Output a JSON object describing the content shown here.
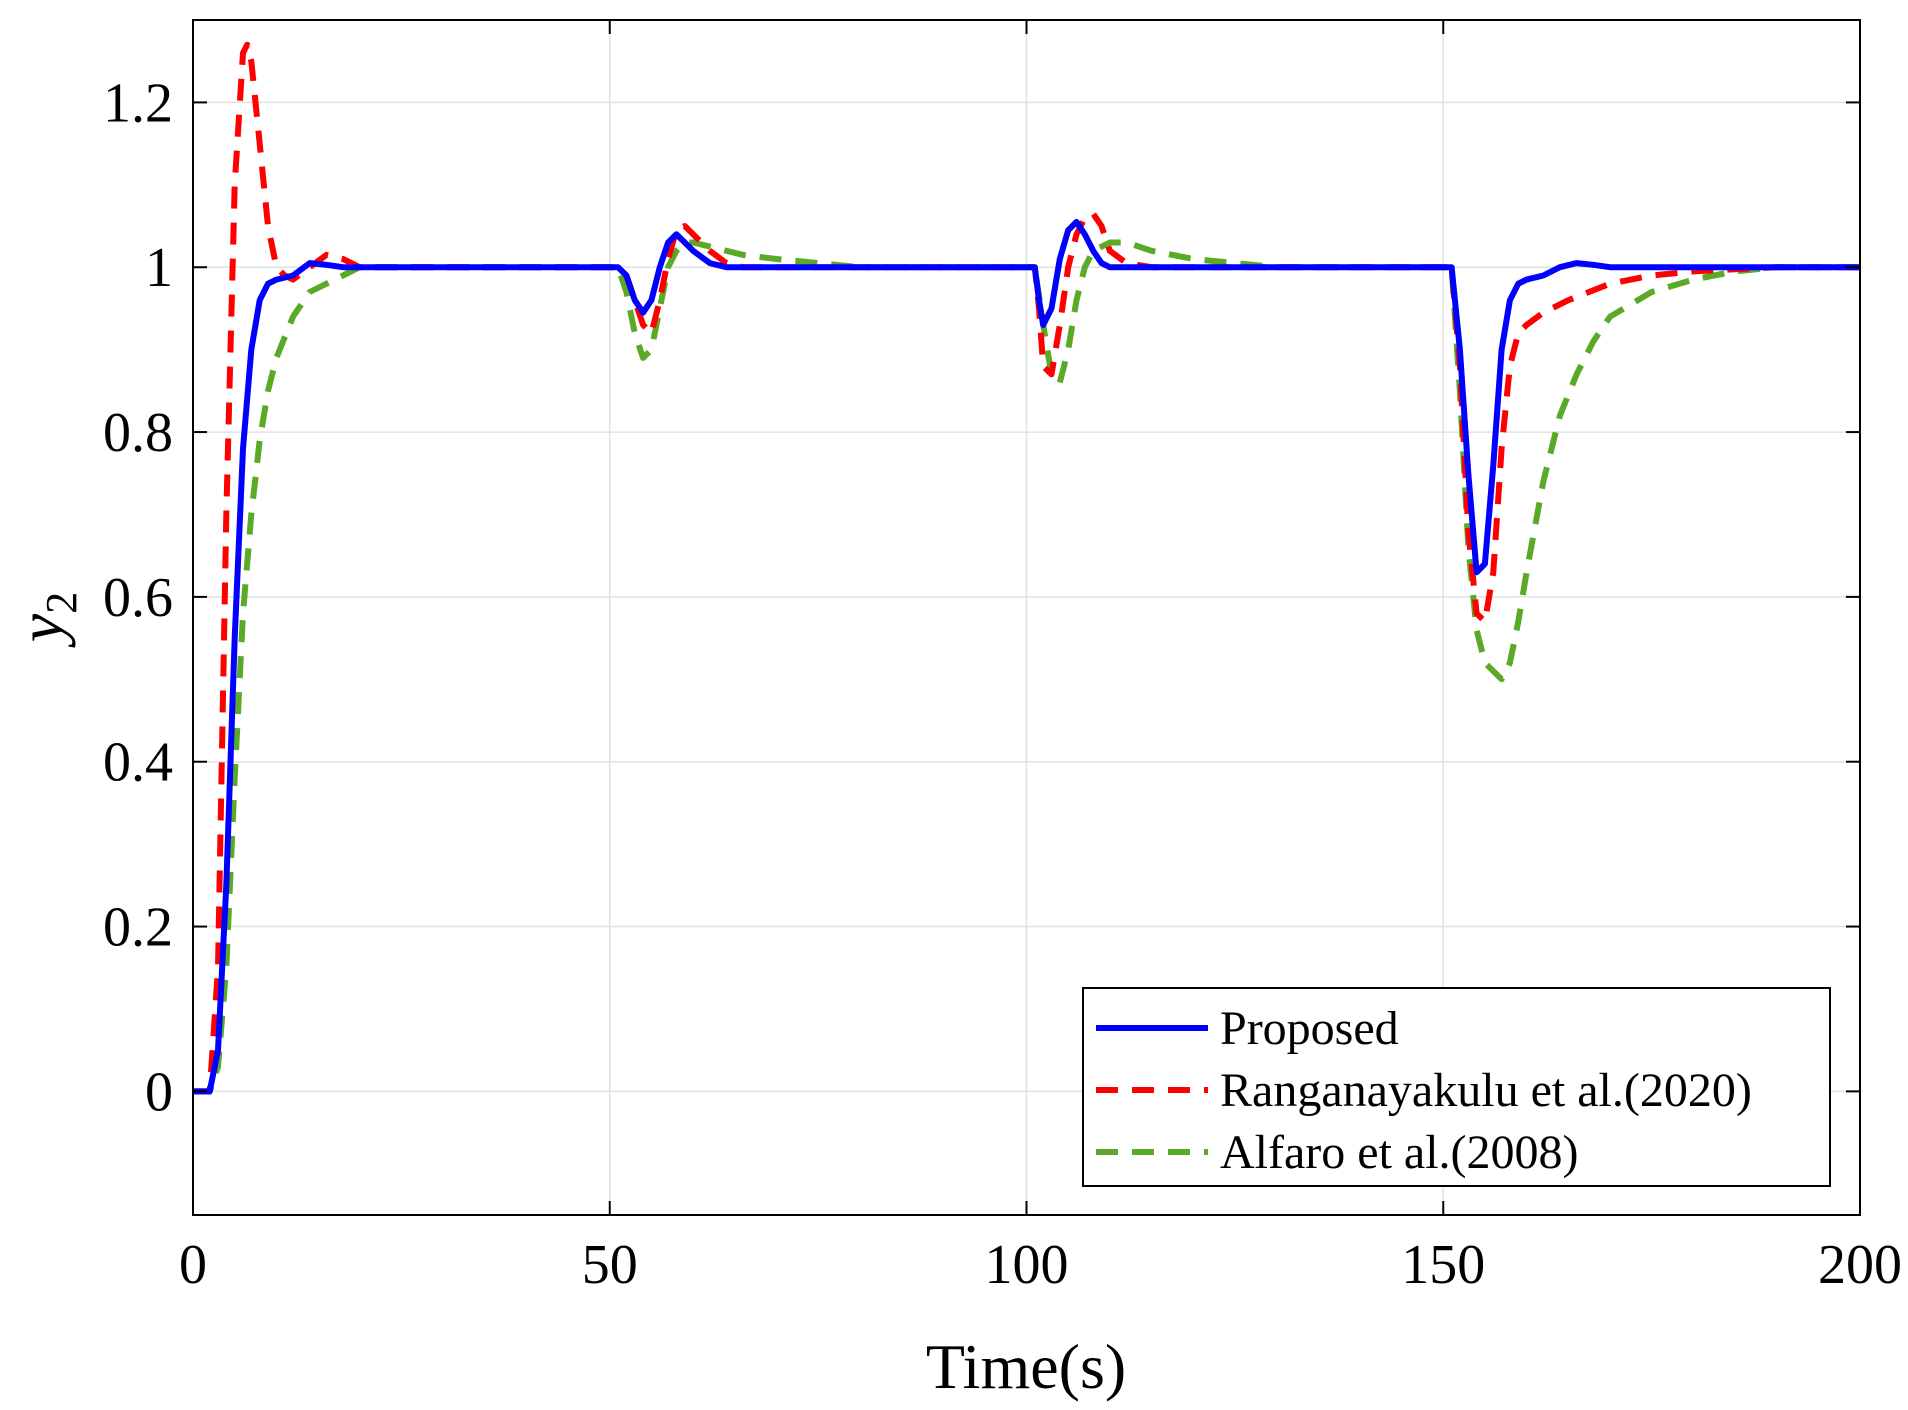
{
  "chart_data": {
    "type": "line",
    "title": "",
    "xlabel": "Time(s)",
    "ylabel": "y",
    "ylabel_subscript": "2",
    "xlim": [
      0,
      200
    ],
    "ylim": [
      -0.15,
      1.3
    ],
    "xticks": [
      0,
      50,
      100,
      150,
      200
    ],
    "xtick_labels": [
      "0",
      "50",
      "100",
      "150",
      "200"
    ],
    "yticks": [
      0,
      0.2,
      0.4,
      0.6,
      0.8,
      1,
      1.2
    ],
    "ytick_labels": [
      "0",
      "0.2",
      "0.4",
      "0.6",
      "0.8",
      "1",
      "1.2"
    ],
    "grid": true,
    "legend_position": "bottom-right",
    "series": [
      {
        "name": "Proposed",
        "color": "#0000ff",
        "style": "solid",
        "x": [
          0,
          2,
          3,
          4,
          5,
          6,
          7,
          8,
          9,
          10,
          12,
          14,
          16,
          18,
          20,
          25,
          30,
          40,
          51,
          52,
          53,
          54,
          55,
          56,
          57,
          58,
          59,
          60,
          62,
          64,
          66,
          70,
          80,
          90,
          101,
          101.5,
          102,
          103,
          104,
          105,
          106,
          107,
          108,
          109,
          110,
          112,
          115,
          120,
          130,
          140,
          151,
          152,
          153,
          154,
          155,
          156,
          157,
          158,
          159,
          160,
          162,
          164,
          166,
          168,
          170,
          175,
          180,
          190,
          200
        ],
        "y": [
          0,
          0,
          0.05,
          0.25,
          0.55,
          0.78,
          0.9,
          0.96,
          0.98,
          0.985,
          0.99,
          1.005,
          1.003,
          1.0,
          1.0,
          1.0,
          1.0,
          1.0,
          1.0,
          0.99,
          0.96,
          0.945,
          0.96,
          1.0,
          1.03,
          1.04,
          1.03,
          1.02,
          1.005,
          1.0,
          1.0,
          1.0,
          1.0,
          1.0,
          1.0,
          0.96,
          0.93,
          0.95,
          1.01,
          1.045,
          1.055,
          1.04,
          1.02,
          1.005,
          1.0,
          1.0,
          1.0,
          1.0,
          1.0,
          1.0,
          1.0,
          0.9,
          0.75,
          0.63,
          0.64,
          0.76,
          0.9,
          0.96,
          0.98,
          0.985,
          0.99,
          1.0,
          1.005,
          1.003,
          1.0,
          1.0,
          1.0,
          1.0,
          1.0
        ]
      },
      {
        "name": "Ranganayakulu et al.(2020)",
        "color": "#ff0000",
        "style": "dashed",
        "x": [
          0,
          2,
          3,
          4,
          5,
          6,
          6.5,
          7,
          8,
          9,
          10,
          11,
          12,
          14,
          16,
          18,
          20,
          25,
          30,
          40,
          51,
          52,
          53,
          54,
          55,
          56,
          57,
          58,
          59,
          60,
          61,
          62,
          64,
          66,
          70,
          80,
          90,
          101,
          101.5,
          102,
          103,
          104,
          105,
          106,
          107,
          108,
          109,
          110,
          112,
          115,
          120,
          130,
          140,
          151,
          152,
          153,
          154,
          155,
          156,
          157,
          158,
          159,
          160,
          162,
          165,
          170,
          175,
          180,
          190,
          200
        ],
        "y": [
          0,
          0,
          0.15,
          0.7,
          1.1,
          1.26,
          1.27,
          1.25,
          1.15,
          1.05,
          1.0,
          0.99,
          0.985,
          1.0,
          1.015,
          1.01,
          1.0,
          1.0,
          1.0,
          1.0,
          1.0,
          0.99,
          0.96,
          0.93,
          0.92,
          0.96,
          1.01,
          1.045,
          1.05,
          1.04,
          1.03,
          1.02,
          1.005,
          1.0,
          1.0,
          1.0,
          1.0,
          1.0,
          0.95,
          0.88,
          0.87,
          0.93,
          1.0,
          1.04,
          1.06,
          1.065,
          1.05,
          1.02,
          1.005,
          1.0,
          1.0,
          1.0,
          1.0,
          1.0,
          0.88,
          0.68,
          0.58,
          0.57,
          0.63,
          0.78,
          0.88,
          0.92,
          0.93,
          0.945,
          0.96,
          0.98,
          0.99,
          0.995,
          1.0,
          1.0
        ]
      },
      {
        "name": "Alfaro et al.(2008)",
        "color": "#5aaa28",
        "style": "dashed",
        "x": [
          0,
          2,
          3,
          4,
          5,
          6,
          7,
          8,
          9,
          10,
          12,
          14,
          16,
          18,
          20,
          22,
          25,
          30,
          40,
          51,
          52,
          53,
          54,
          55,
          56,
          57,
          58,
          59,
          60,
          62,
          64,
          66,
          70,
          75,
          80,
          90,
          101,
          102,
          103,
          104,
          105,
          106,
          107,
          108,
          110,
          112,
          115,
          120,
          125,
          130,
          140,
          151,
          152,
          153,
          154,
          155,
          156,
          157,
          158,
          159,
          160,
          162,
          164,
          166,
          168,
          170,
          175,
          180,
          185,
          190,
          200
        ],
        "y": [
          0,
          0,
          0.03,
          0.15,
          0.38,
          0.58,
          0.7,
          0.79,
          0.85,
          0.89,
          0.94,
          0.97,
          0.98,
          0.99,
          1.0,
          1.0,
          1.0,
          1.0,
          1.0,
          1.0,
          0.97,
          0.92,
          0.89,
          0.9,
          0.95,
          1.0,
          1.02,
          1.03,
          1.03,
          1.025,
          1.02,
          1.015,
          1.01,
          1.005,
          1.0,
          1.0,
          1.0,
          0.93,
          0.87,
          0.86,
          0.9,
          0.96,
          1.0,
          1.02,
          1.03,
          1.03,
          1.02,
          1.01,
          1.005,
          1.0,
          1.0,
          1.0,
          0.85,
          0.66,
          0.56,
          0.52,
          0.51,
          0.5,
          0.52,
          0.57,
          0.63,
          0.74,
          0.82,
          0.87,
          0.91,
          0.94,
          0.97,
          0.985,
          0.995,
          1.0,
          1.0
        ]
      }
    ]
  }
}
